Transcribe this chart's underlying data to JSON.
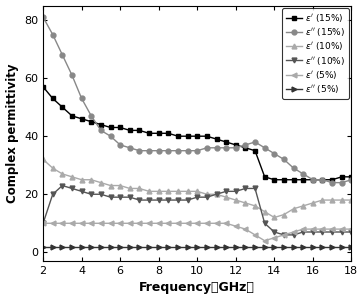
{
  "xlabel": "Frequency（GHz）",
  "ylabel": "Complex permittivity",
  "xlim": [
    2,
    18
  ],
  "ylim": [
    -3,
    85
  ],
  "yticks": [
    0,
    20,
    40,
    60,
    80
  ],
  "xticks": [
    2,
    4,
    6,
    8,
    10,
    12,
    14,
    16,
    18
  ],
  "freq": [
    2,
    2.5,
    3,
    3.5,
    4,
    4.5,
    5,
    5.5,
    6,
    6.5,
    7,
    7.5,
    8,
    8.5,
    9,
    9.5,
    10,
    10.5,
    11,
    11.5,
    12,
    12.5,
    13,
    13.5,
    14,
    14.5,
    15,
    15.5,
    16,
    16.5,
    17,
    17.5,
    18
  ],
  "eps_real_15": [
    57,
    53,
    50,
    47,
    46,
    45,
    44,
    43,
    43,
    42,
    42,
    41,
    41,
    41,
    40,
    40,
    40,
    40,
    39,
    38,
    37,
    36,
    35,
    26,
    25,
    25,
    25,
    25,
    25,
    25,
    25,
    26,
    26
  ],
  "eps_imag_15": [
    81,
    75,
    68,
    61,
    53,
    47,
    42,
    40,
    37,
    36,
    35,
    35,
    35,
    35,
    35,
    35,
    35,
    36,
    36,
    36,
    36,
    37,
    38,
    36,
    34,
    32,
    29,
    27,
    25,
    25,
    24,
    24,
    25
  ],
  "eps_real_10": [
    32,
    29,
    27,
    26,
    25,
    25,
    24,
    23,
    23,
    22,
    22,
    21,
    21,
    21,
    21,
    21,
    21,
    20,
    20,
    19,
    18,
    17,
    16,
    14,
    12,
    13,
    15,
    16,
    17,
    18,
    18,
    18,
    18
  ],
  "eps_imag_10": [
    10,
    20,
    23,
    22,
    21,
    20,
    20,
    19,
    19,
    19,
    18,
    18,
    18,
    18,
    18,
    18,
    19,
    19,
    20,
    21,
    21,
    22,
    22,
    10,
    7,
    6,
    6,
    7,
    7,
    7,
    7,
    7,
    7
  ],
  "eps_real_5": [
    10,
    10,
    10,
    10,
    10,
    10,
    10,
    10,
    10,
    10,
    10,
    10,
    10,
    10,
    10,
    10,
    10,
    10,
    10,
    10,
    9,
    8,
    6,
    4,
    5,
    6,
    7,
    8,
    8,
    8,
    8,
    8,
    8
  ],
  "eps_imag_5": [
    2,
    2,
    2,
    2,
    2,
    2,
    2,
    2,
    2,
    2,
    2,
    2,
    2,
    2,
    2,
    2,
    2,
    2,
    2,
    2,
    2,
    2,
    2,
    2,
    2,
    2,
    2,
    2,
    2,
    2,
    2,
    2,
    2
  ],
  "color_real_15": "#000000",
  "color_imag_15": "#888888",
  "color_real_10": "#aaaaaa",
  "color_imag_10": "#555555",
  "color_real_5": "#aaaaaa",
  "color_imag_5": "#333333",
  "legend_labels": [
    "$\\varepsilon'$ (15%)",
    "$\\varepsilon''$ (15%)",
    "$\\varepsilon'$ (10%)",
    "$\\varepsilon''$ (10%)",
    "$\\varepsilon'$ (5%)",
    "$\\varepsilon''$ (5%)"
  ],
  "background_color": "#ffffff"
}
